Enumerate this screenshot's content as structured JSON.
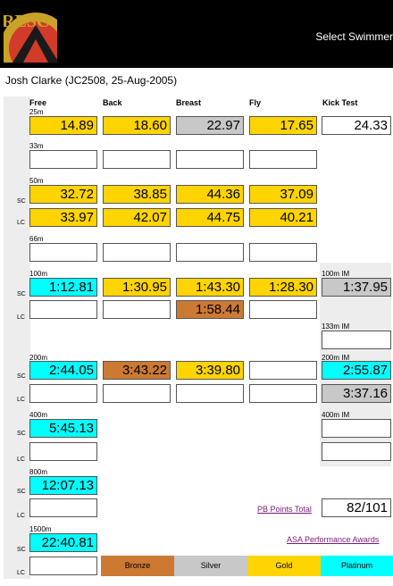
{
  "header": {
    "title": "Select Swimmer"
  },
  "swimmer": {
    "name": "Josh Clarke (JC2508, 25-Aug-2005)"
  },
  "columns": {
    "free": "Free",
    "back": "Back",
    "breast": "Breast",
    "fly": "Fly",
    "kick": "Kick Test"
  },
  "distances": {
    "d25": "25m",
    "d33": "33m",
    "d50": "50m",
    "d66": "66m",
    "d100": "100m",
    "d200": "200m",
    "d400": "400m",
    "d800": "800m",
    "d1500": "1500m"
  },
  "im": {
    "i100": "100m IM",
    "i133": "133m IM",
    "i200": "200m IM",
    "i400": "400m IM"
  },
  "course": {
    "sc": "SC",
    "lc": "LC"
  },
  "times": {
    "t25": [
      "14.89",
      "18.60",
      "22.97",
      "17.65"
    ],
    "kick": "24.33",
    "t50sc": [
      "32.72",
      "38.85",
      "44.36",
      "37.09"
    ],
    "t50lc": [
      "33.97",
      "42.07",
      "44.75",
      "40.21"
    ],
    "t100sc": [
      "1:12.81",
      "1:30.95",
      "1:43.30",
      "1:28.30"
    ],
    "t100lc_breast": "1:58.44",
    "im100": "1:37.95",
    "t200sc": [
      "2:44.05",
      "3:43.22",
      "3:39.80"
    ],
    "im200sc": "2:55.87",
    "im200lc": "3:37.16",
    "t400sc": "5:45.13",
    "t800sc": "12:07.13",
    "t1500sc": "22:40.81"
  },
  "pb_points": {
    "label": "PB Points Total",
    "value": "82/101"
  },
  "asa_link": "ASA Performance Awards",
  "legend": {
    "bronze": "Bronze",
    "silver": "Silver",
    "gold": "Gold",
    "platinum": "Platinum"
  },
  "colors": {
    "gold": "#ffd400",
    "silver": "#c8c8c8",
    "bronze": "#cc7a33",
    "platinum": "#00ffff"
  }
}
